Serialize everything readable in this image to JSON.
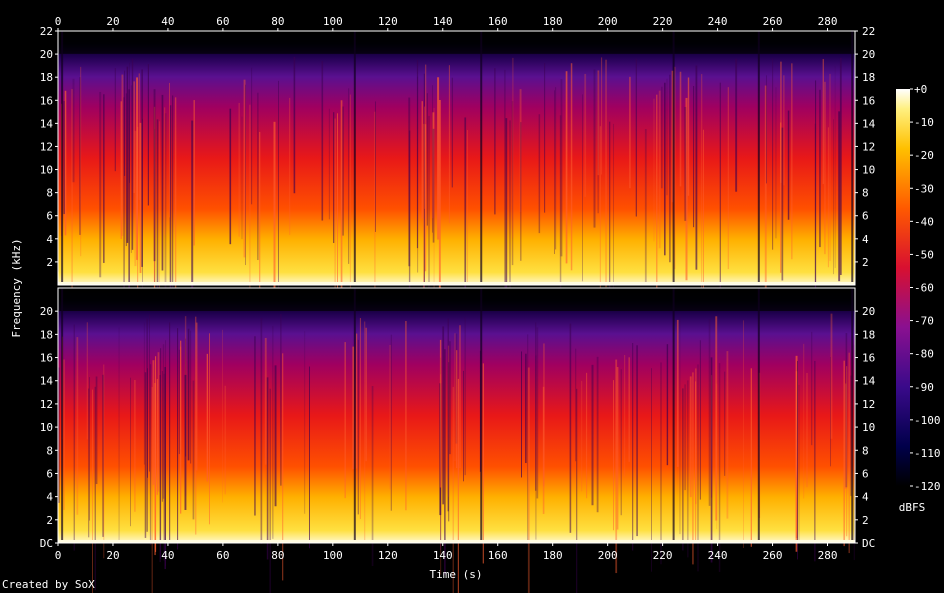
{
  "chart_data": {
    "type": "heatmap",
    "title": "",
    "xlabel": "Time (s)",
    "ylabel": "Frequency (kHz)",
    "xlim": [
      0,
      290
    ],
    "ylim": [
      0,
      22
    ],
    "x_ticks": [
      "0",
      "20",
      "40",
      "60",
      "80",
      "100",
      "120",
      "140",
      "160",
      "180",
      "200",
      "220",
      "240",
      "260",
      "280"
    ],
    "y_ticks_top": [
      "2",
      "4",
      "6",
      "8",
      "10",
      "12",
      "14",
      "16",
      "18",
      "20",
      "22"
    ],
    "y_ticks_bottom": [
      "DC",
      "2",
      "4",
      "6",
      "8",
      "10",
      "12",
      "14",
      "16",
      "18",
      "20"
    ],
    "channels": 2,
    "colorbar": {
      "label": "dBFS",
      "ticks": [
        "+0",
        "-10",
        "-20",
        "-30",
        "-40",
        "-50",
        "-60",
        "-70",
        "-80",
        "-90",
        "-100",
        "-110",
        "-120"
      ],
      "range": [
        -120,
        0
      ]
    },
    "colors": {
      "background": "#000000",
      "axis": "#ffffff"
    }
  },
  "credit": "Created by SoX"
}
